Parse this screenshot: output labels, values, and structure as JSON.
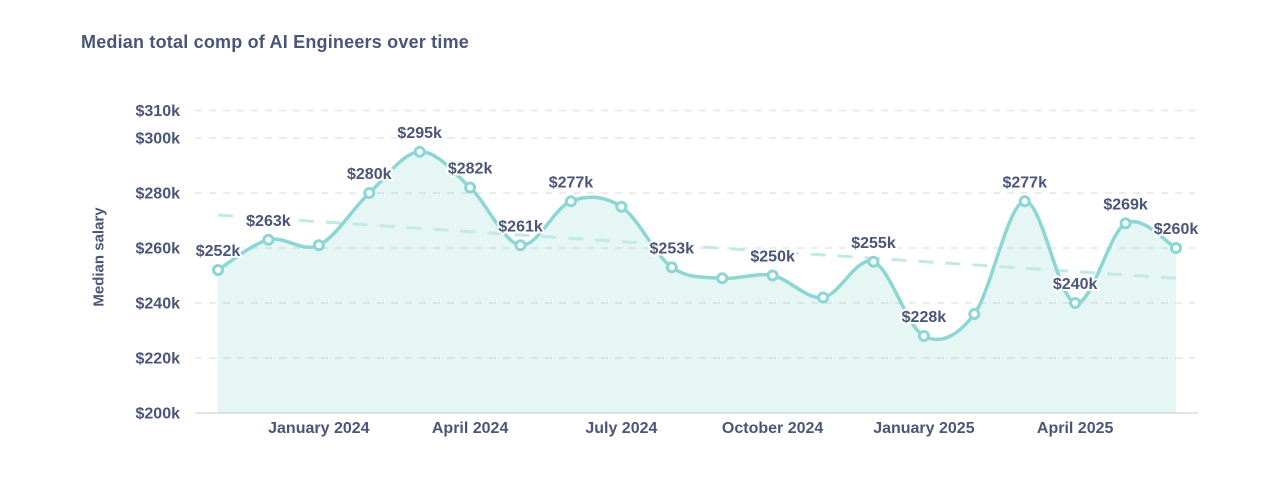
{
  "chart_data": {
    "type": "area",
    "title": "Median total comp of AI Engineers over time",
    "ylabel": "Median salary",
    "xlabel": "",
    "ylim": [
      200,
      310
    ],
    "grid": "horizontal-dashed",
    "legend": "none",
    "y_ticks": [
      {
        "value": 310,
        "label": "$310k"
      },
      {
        "value": 300,
        "label": "$300k"
      },
      {
        "value": 280,
        "label": "$280k"
      },
      {
        "value": 260,
        "label": "$260k"
      },
      {
        "value": 240,
        "label": "$240k"
      },
      {
        "value": 220,
        "label": "$220k"
      },
      {
        "value": 200,
        "label": "$200k"
      }
    ],
    "x_ticks": [
      {
        "index": 2,
        "label": "January 2024"
      },
      {
        "index": 5,
        "label": "April 2024"
      },
      {
        "index": 8,
        "label": "July 2024"
      },
      {
        "index": 11,
        "label": "October 2024"
      },
      {
        "index": 14,
        "label": "January 2025"
      },
      {
        "index": 17,
        "label": "April 2025"
      }
    ],
    "points": [
      {
        "month": "Nov 2023",
        "value": 252,
        "label": "$252k"
      },
      {
        "month": "Dec 2023",
        "value": 263,
        "label": "$263k"
      },
      {
        "month": "Jan 2024",
        "value": 261,
        "label": null
      },
      {
        "month": "Feb 2024",
        "value": 280,
        "label": "$280k"
      },
      {
        "month": "Mar 2024",
        "value": 295,
        "label": "$295k"
      },
      {
        "month": "Apr 2024",
        "value": 282,
        "label": "$282k"
      },
      {
        "month": "May 2024",
        "value": 261,
        "label": "$261k"
      },
      {
        "month": "Jun 2024",
        "value": 277,
        "label": "$277k"
      },
      {
        "month": "Jul 2024",
        "value": 275,
        "label": null
      },
      {
        "month": "Aug 2024",
        "value": 253,
        "label": "$253k"
      },
      {
        "month": "Sep 2024",
        "value": 249,
        "label": null
      },
      {
        "month": "Oct 2024",
        "value": 250,
        "label": "$250k"
      },
      {
        "month": "Nov 2024",
        "value": 242,
        "label": null
      },
      {
        "month": "Dec 2024",
        "value": 255,
        "label": "$255k"
      },
      {
        "month": "Jan 2025",
        "value": 228,
        "label": "$228k"
      },
      {
        "month": "Feb 2025",
        "value": 236,
        "label": null
      },
      {
        "month": "Mar 2025",
        "value": 277,
        "label": "$277k"
      },
      {
        "month": "Apr 2025",
        "value": 240,
        "label": "$240k"
      },
      {
        "month": "May 2025",
        "value": 269,
        "label": "$269k"
      },
      {
        "month": "Jun 2025",
        "value": 260,
        "label": "$260k"
      }
    ],
    "trend": {
      "style": "dashed",
      "start_value": 272,
      "end_value": 249
    },
    "colors": {
      "line": "#8cd6d3",
      "marker_fill": "#ffffff",
      "area": "#8cd6d3",
      "area_opacity": 0.22,
      "trend": "#c2e9e6",
      "grid": "#e4e5e8",
      "axis_line": "#d9dbde",
      "text": "#4a5578",
      "background": "#ffffff"
    }
  }
}
